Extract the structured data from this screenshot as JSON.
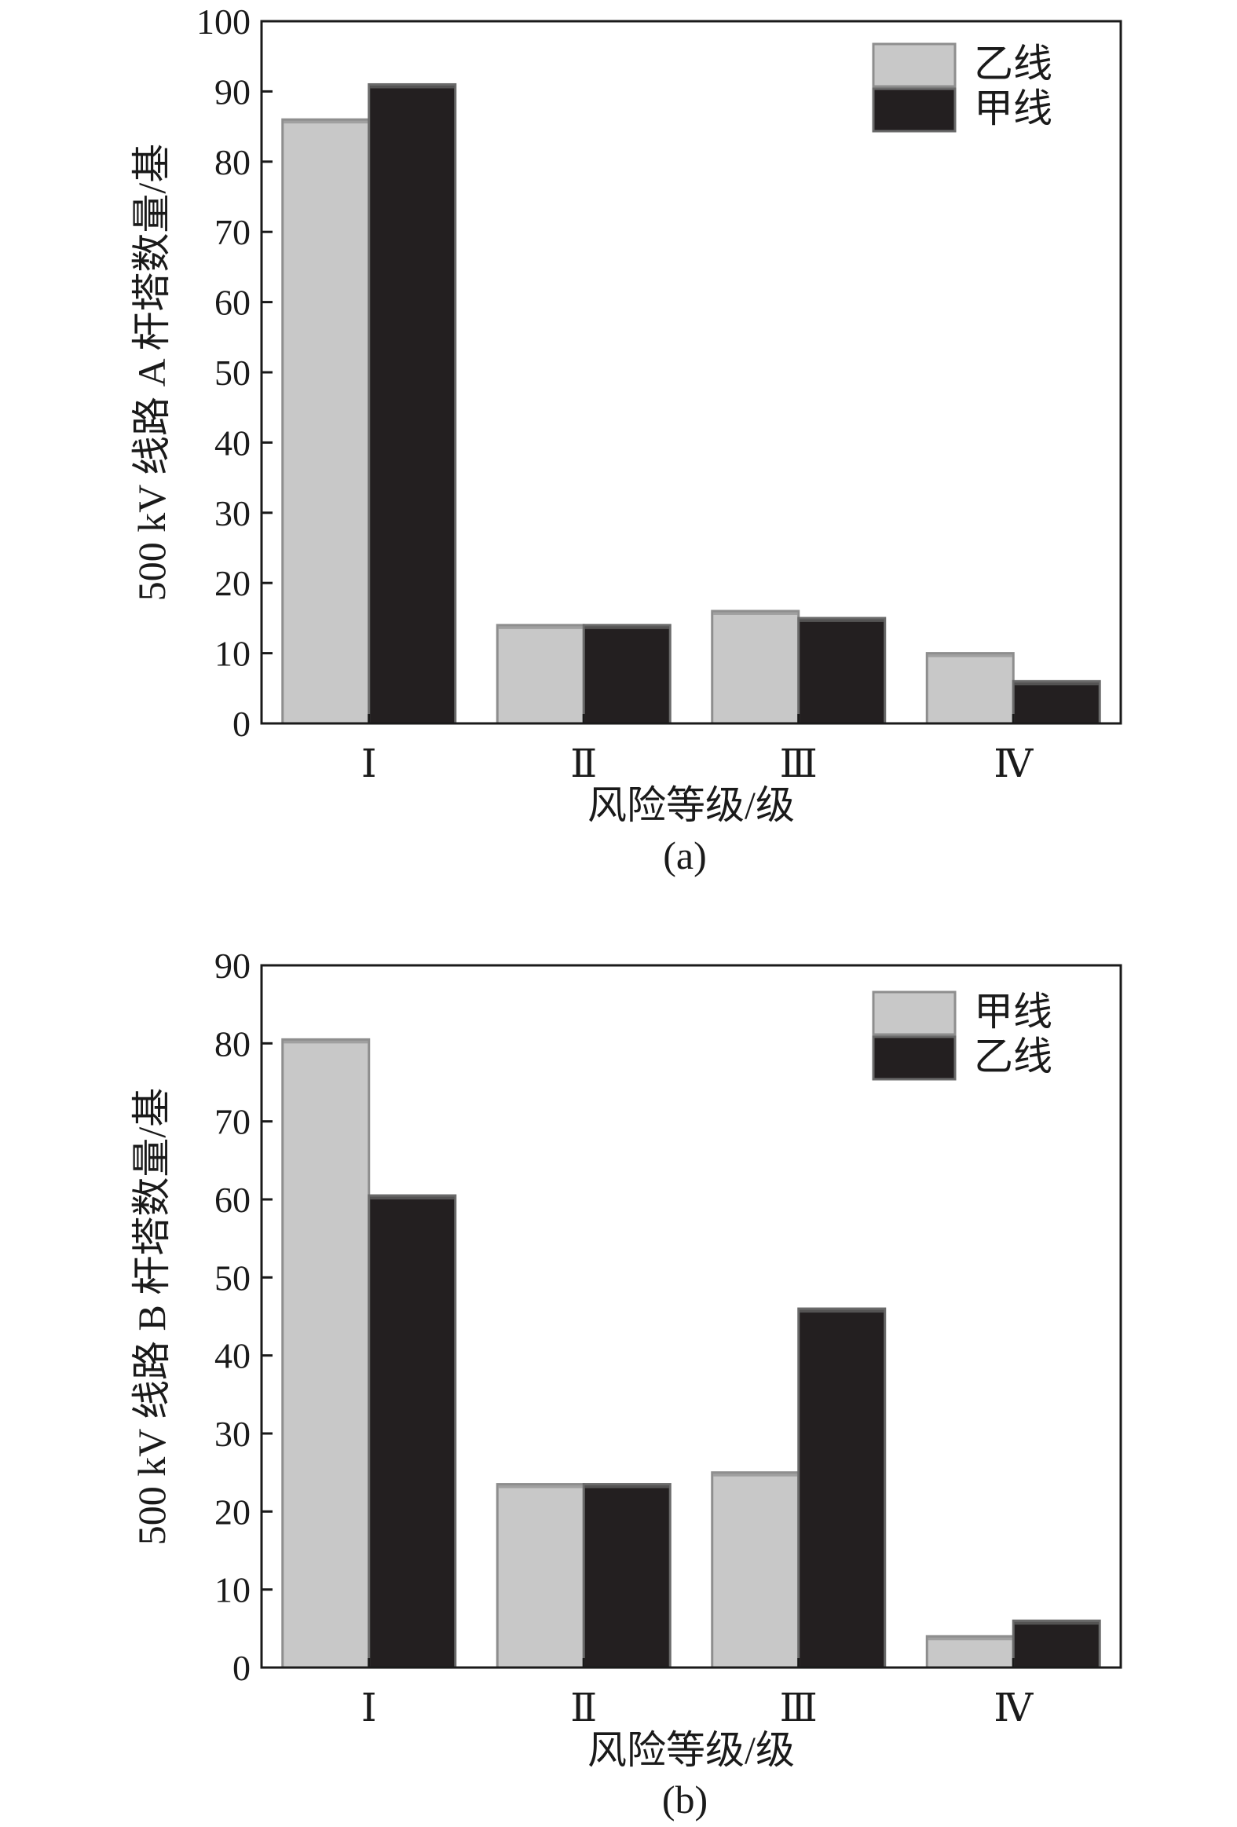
{
  "chart_data": [
    {
      "type": "bar",
      "caption": "(a)",
      "categories": [
        "Ⅰ",
        "Ⅱ",
        "Ⅲ",
        "Ⅳ"
      ],
      "series": [
        {
          "name": "乙线",
          "values": [
            86,
            14,
            16,
            10
          ],
          "color": "#c8c8c8",
          "edge": "#8e8e8e"
        },
        {
          "name": "甲线",
          "values": [
            91,
            14,
            15,
            6
          ],
          "color": "#231f20",
          "edge": "#6a6a6a"
        }
      ],
      "xlabel": "风险等级/级",
      "ylabel": "500 kV 线路 A 杆塔数量/基",
      "ylim": [
        0,
        100
      ],
      "yticks": [
        0,
        10,
        20,
        30,
        40,
        50,
        60,
        70,
        80,
        90,
        100
      ],
      "grid": false,
      "legend": "top-right"
    },
    {
      "type": "bar",
      "caption": "(b)",
      "categories": [
        "Ⅰ",
        "Ⅱ",
        "Ⅲ",
        "Ⅳ"
      ],
      "series": [
        {
          "name": "甲线",
          "values": [
            80.5,
            23.5,
            25,
            4
          ],
          "color": "#c8c8c8",
          "edge": "#8e8e8e"
        },
        {
          "name": "乙线",
          "values": [
            60.5,
            23.5,
            46,
            6
          ],
          "color": "#231f20",
          "edge": "#6a6a6a"
        }
      ],
      "xlabel": "风险等级/级",
      "ylabel": "500 kV 线路 B 杆塔数量/基",
      "ylim": [
        0,
        90
      ],
      "yticks": [
        0,
        10,
        20,
        30,
        40,
        50,
        60,
        70,
        80,
        90
      ],
      "grid": false,
      "legend": "top-right"
    }
  ]
}
